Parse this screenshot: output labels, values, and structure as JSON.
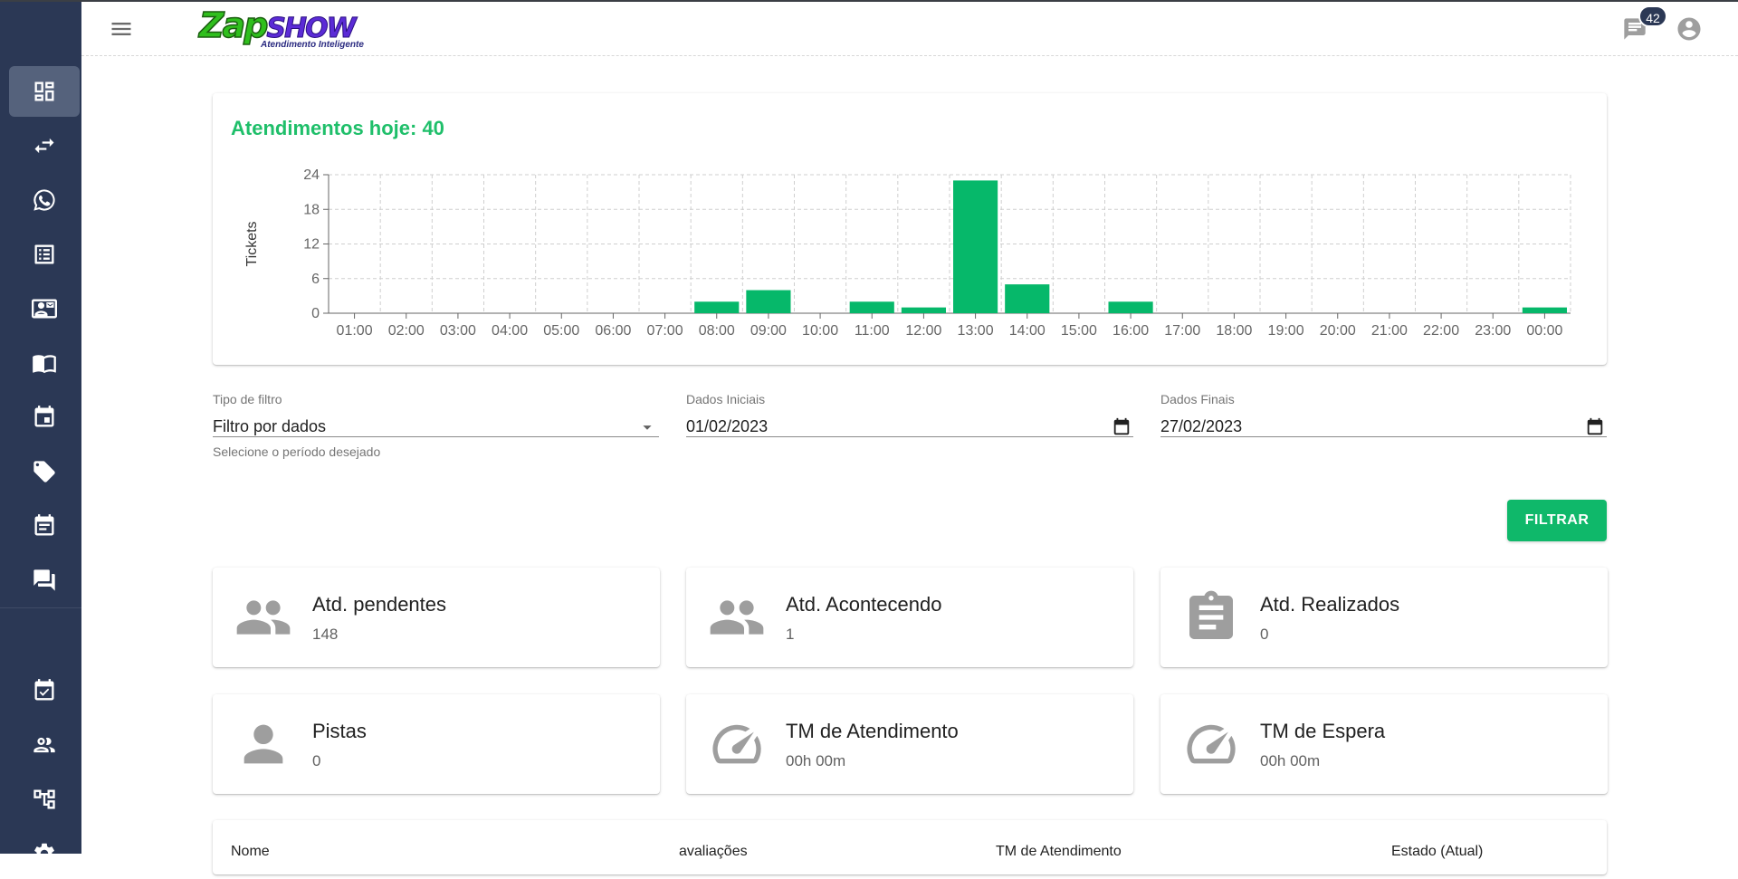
{
  "header": {
    "logo_main_a": "Zap",
    "logo_main_b": "SHOW",
    "logo_sub": "Atendimento Inteligente",
    "chat_badge": "42"
  },
  "sidebar": {
    "items": [
      {
        "icon": "dashboard-icon",
        "active": true
      },
      {
        "icon": "transfer-icon"
      },
      {
        "icon": "whatsapp-icon"
      },
      {
        "icon": "list-icon"
      },
      {
        "icon": "contact-card-icon"
      },
      {
        "icon": "book-icon"
      },
      {
        "icon": "calendar-icon"
      },
      {
        "icon": "tag-icon"
      },
      {
        "icon": "event-note-icon"
      },
      {
        "icon": "forum-icon"
      },
      {
        "icon": "event-check-icon"
      },
      {
        "icon": "users-icon"
      },
      {
        "icon": "hierarchy-icon"
      },
      {
        "icon": "gear-icon"
      }
    ]
  },
  "chart": {
    "title": "Atendimentos hoje: 40"
  },
  "chart_data": {
    "type": "bar",
    "ylabel": "Tickets",
    "xlabel": "",
    "ylim": [
      0,
      24
    ],
    "yticks": [
      0,
      6,
      12,
      18,
      24
    ],
    "grid": true,
    "color": "#06b86a",
    "categories": [
      "01:00",
      "02:00",
      "03:00",
      "04:00",
      "05:00",
      "06:00",
      "07:00",
      "08:00",
      "09:00",
      "10:00",
      "11:00",
      "12:00",
      "13:00",
      "14:00",
      "15:00",
      "16:00",
      "17:00",
      "18:00",
      "19:00",
      "20:00",
      "21:00",
      "22:00",
      "23:00",
      "00:00"
    ],
    "values": [
      0,
      0,
      0,
      0,
      0,
      0,
      0,
      2,
      4,
      0,
      2,
      1,
      23,
      5,
      0,
      2,
      0,
      0,
      0,
      0,
      0,
      0,
      0,
      1
    ]
  },
  "filters": {
    "type_label": "Tipo de filtro",
    "type_value": "Filtro por dados",
    "type_helper": "Selecione o período desejado",
    "start_label": "Dados Iniciais",
    "start_value": "01/02/2023",
    "end_label": "Dados Finais",
    "end_value": "27/02/2023",
    "button": "FILTRAR"
  },
  "stats": [
    {
      "title": "Atd. pendentes",
      "value": "148",
      "icon": "group-icon"
    },
    {
      "title": "Atd. Acontecendo",
      "value": "1",
      "icon": "group-icon"
    },
    {
      "title": "Atd. Realizados",
      "value": "0",
      "icon": "clipboard-icon"
    },
    {
      "title": "Pistas",
      "value": "0",
      "icon": "person-icon"
    },
    {
      "title": "TM de Atendimento",
      "value": "00h 00m",
      "icon": "speedometer-icon"
    },
    {
      "title": "TM de Espera",
      "value": "00h 00m",
      "icon": "speedometer-icon"
    }
  ],
  "table": {
    "columns": [
      "Nome",
      "avaliações",
      "TM de Atendimento",
      "Estado (Atual)"
    ]
  }
}
